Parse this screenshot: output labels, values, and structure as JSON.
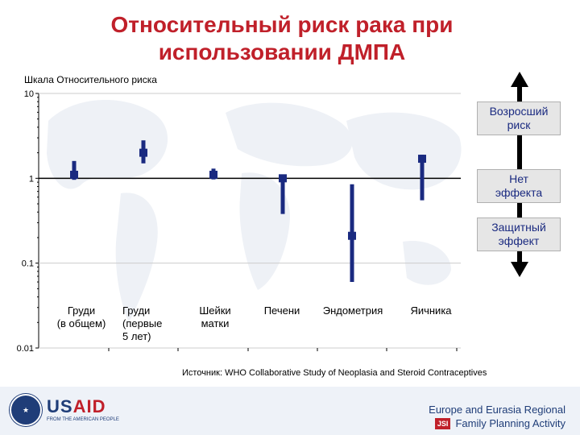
{
  "title": {
    "line1": "Относительный риск рака при",
    "line2": "использовании ДМПА"
  },
  "scale_label": "Шкала Относительного риска",
  "legend": {
    "increased": "Возросший\nриск",
    "none": "Нет\nэффекта",
    "protective": "Защитный\nэффект"
  },
  "source": "Источник: WHO Collaborative Study of Neoplasia and Steroid Contraceptives",
  "footer": {
    "usaid_word_a": "US",
    "usaid_word_b": "AID",
    "usaid_tagline": "FROM THE AMERICAN PEOPLE",
    "org_line1": "Europe and Eurasia Regional",
    "org_line2": "Family Planning Activity",
    "jsi": "JSI"
  },
  "colors": {
    "title": "#c0202a",
    "marker": "#1a2a80",
    "grid": "#cccccc",
    "arrow": "#000000"
  },
  "chart_data": {
    "type": "scatter",
    "ylabel": "Шкала Относительного риска",
    "y_scale": "log",
    "ylim": [
      0.01,
      10
    ],
    "yticks": [
      {
        "value": 10,
        "label": "10"
      },
      {
        "value": 1,
        "label": "1"
      },
      {
        "value": 0.1,
        "label": "0.1"
      },
      {
        "value": 0.01,
        "label": "0.01"
      }
    ],
    "categories": [
      "Груди\n(в общем)",
      "Груди\n(первые\n5 лет)",
      "Шейки\nматки",
      "Печени",
      "Эндометрия",
      "Яичника"
    ],
    "points": [
      {
        "estimate": 1.1,
        "lower": 0.96,
        "upper": 1.6
      },
      {
        "estimate": 2.0,
        "lower": 1.5,
        "upper": 2.8
      },
      {
        "estimate": 1.1,
        "lower": 0.97,
        "upper": 1.3
      },
      {
        "estimate": 1.0,
        "lower": 0.38,
        "upper": 1.1
      },
      {
        "estimate": 0.21,
        "lower": 0.06,
        "upper": 0.85
      },
      {
        "estimate": 1.7,
        "lower": 0.55,
        "upper": 1.9
      }
    ]
  }
}
